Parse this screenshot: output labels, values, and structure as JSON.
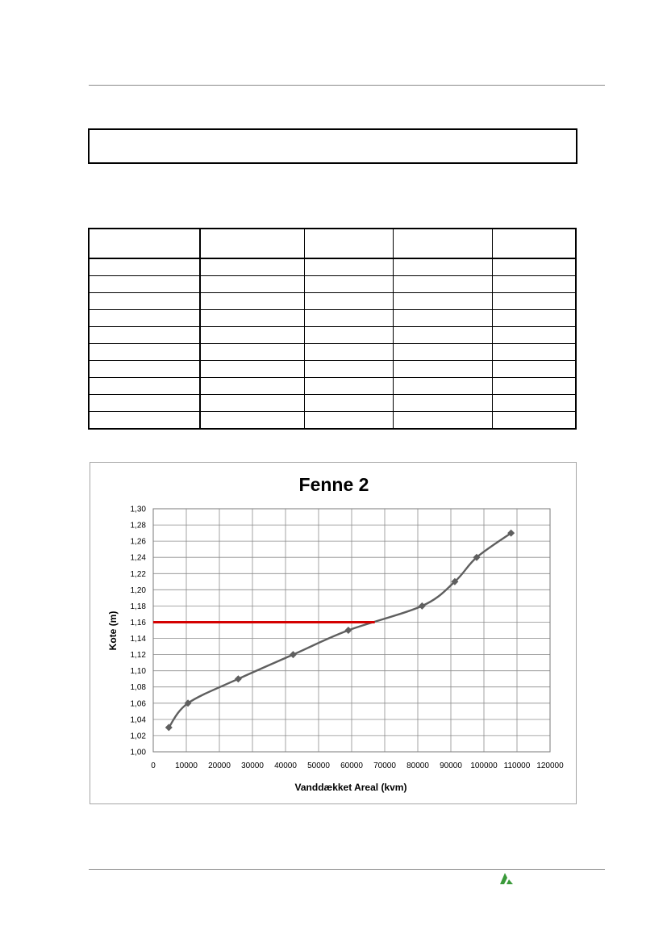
{
  "page": {
    "table_rows": 10,
    "logo_icon": "company-logo-icon",
    "accent_color": "#3a9a3a"
  },
  "chart_data": {
    "type": "line",
    "title": "Fenne 2",
    "xlabel": "Vanddækket Areal (kvm)",
    "ylabel": "Kote (m)",
    "xlim": [
      0,
      120000
    ],
    "ylim": [
      1.0,
      1.3
    ],
    "xticks": [
      0,
      10000,
      20000,
      30000,
      40000,
      50000,
      60000,
      70000,
      80000,
      90000,
      100000,
      110000,
      120000
    ],
    "xtick_labels": [
      "0",
      "10000",
      "20000",
      "30000",
      "40000",
      "50000",
      "60000",
      "70000",
      "80000",
      "90000",
      "100000",
      "110000",
      "120000"
    ],
    "yticks": [
      1.0,
      1.02,
      1.04,
      1.06,
      1.08,
      1.1,
      1.12,
      1.14,
      1.16,
      1.18,
      1.2,
      1.22,
      1.24,
      1.26,
      1.28,
      1.3
    ],
    "ytick_labels": [
      "1,00",
      "1,02",
      "1,04",
      "1,06",
      "1,08",
      "1,10",
      "1,12",
      "1,14",
      "1,16",
      "1,18",
      "1,20",
      "1,22",
      "1,24",
      "1,26",
      "1,28",
      "1,30"
    ],
    "grid": true,
    "series": [
      {
        "color": "#5f5f5f",
        "marker": "diamond",
        "x": [
          4700,
          10500,
          25700,
          42300,
          59000,
          81300,
          91200,
          97800,
          108200
        ],
        "y": [
          1.03,
          1.06,
          1.09,
          1.12,
          1.15,
          1.18,
          1.21,
          1.24,
          1.27
        ]
      }
    ],
    "reference_line": {
      "y": 1.16,
      "x_start": 0,
      "x_end": 67000,
      "color": "#d40000"
    }
  }
}
